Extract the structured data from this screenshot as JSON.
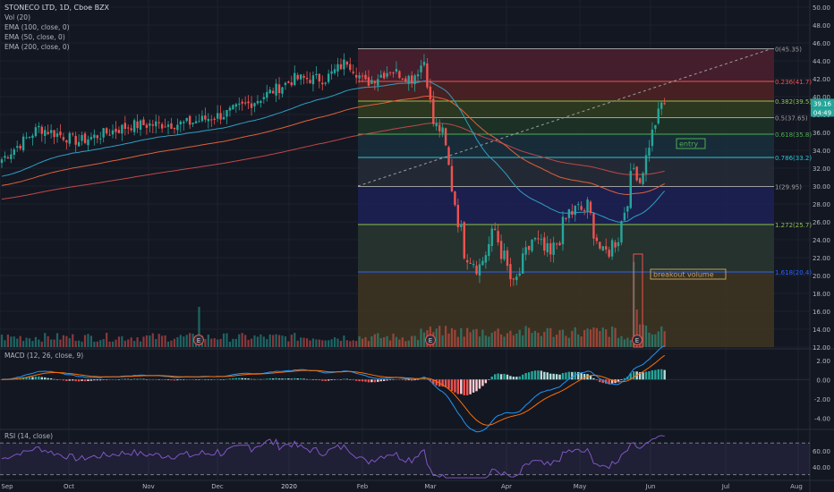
{
  "header": {
    "title": "STONECO LTD, 1D, Cboe BZX",
    "indicators": [
      "Vol (20)",
      "EMA (100, close, 0)",
      "EMA (50, close, 0)",
      "EMA (200, close, 0)"
    ]
  },
  "colors": {
    "background": "#131722",
    "grid": "#1e222d",
    "text": "#b2b5be",
    "up": "#26a69a",
    "down": "#ef5350",
    "ema50": "#2e9fc4",
    "ema100": "#e0603a",
    "ema200": "#c04848",
    "macd": "#2196f3",
    "signal": "#ff6d00",
    "rsi": "#7e57c2",
    "annotation": "#4caf50"
  },
  "chart_data": [
    {
      "type": "candlestick",
      "title": "STONECO LTD, 1D, Cboe BZX",
      "x_months": [
        "Sep",
        "Oct",
        "Nov",
        "Dec",
        "2020",
        "Feb",
        "Mar",
        "Apr",
        "May",
        "Jun",
        "Jul",
        "Aug"
      ],
      "y_ticks": [
        "50.00",
        "48.00",
        "46.00",
        "44.00",
        "42.00",
        "40.00",
        "38.00",
        "36.00",
        "34.00",
        "32.00",
        "30.00",
        "28.00",
        "26.00",
        "24.00",
        "22.00",
        "20.00",
        "18.00",
        "16.00",
        "14.00",
        "12.00"
      ],
      "ylim": [
        12,
        50
      ],
      "price_labels": [
        "39.16",
        "04:49"
      ],
      "close_anchors": [
        {
          "t": 0,
          "v": 33.0
        },
        {
          "t": 12,
          "v": 36.5
        },
        {
          "t": 25,
          "v": 35.0
        },
        {
          "t": 42,
          "v": 36.8
        },
        {
          "t": 60,
          "v": 37.0
        },
        {
          "t": 72,
          "v": 38.0
        },
        {
          "t": 82,
          "v": 39.5
        },
        {
          "t": 95,
          "v": 42.0
        },
        {
          "t": 105,
          "v": 42.0
        },
        {
          "t": 112,
          "v": 44.0
        },
        {
          "t": 118,
          "v": 41.5
        },
        {
          "t": 126,
          "v": 43.0
        },
        {
          "t": 133,
          "v": 42.0
        },
        {
          "t": 137,
          "v": 44.0
        },
        {
          "t": 140,
          "v": 37.0
        },
        {
          "t": 143,
          "v": 36.0
        },
        {
          "t": 146,
          "v": 30.0
        },
        {
          "t": 150,
          "v": 23.0
        },
        {
          "t": 155,
          "v": 21.0
        },
        {
          "t": 160,
          "v": 25.0
        },
        {
          "t": 166,
          "v": 18.5
        },
        {
          "t": 172,
          "v": 24.0
        },
        {
          "t": 178,
          "v": 22.0
        },
        {
          "t": 184,
          "v": 27.0
        },
        {
          "t": 190,
          "v": 27.5
        },
        {
          "t": 195,
          "v": 22.0
        },
        {
          "t": 200,
          "v": 24.5
        },
        {
          "t": 205,
          "v": 32.0
        },
        {
          "t": 207,
          "v": 30.5
        },
        {
          "t": 211,
          "v": 36.0
        },
        {
          "t": 214,
          "v": 39.2
        }
      ],
      "events": [
        {
          "label": "E",
          "date": "Dec"
        },
        {
          "label": "E",
          "date": "Mar"
        },
        {
          "label": "E",
          "date": "Jun"
        }
      ],
      "fibonacci": {
        "levels": [
          {
            "ratio": "0(45.35)",
            "price": 45.35,
            "color": "#9e9e9e",
            "zone": "#4a1f2e"
          },
          {
            "ratio": "0.236(41.7)",
            "price": 41.7,
            "color": "#ef5350",
            "zone": "#4d2124"
          },
          {
            "ratio": "0.382(39.5)",
            "price": 39.5,
            "color": "#8bc34a",
            "zone": "#2f3b1f"
          },
          {
            "ratio": "0.5(37.65)",
            "price": 37.65,
            "color": "#9e9e9e",
            "zone": "#1f3327"
          },
          {
            "ratio": "0.618(35.8)",
            "price": 35.8,
            "color": "#4caf50",
            "zone": "#1a2e3c"
          },
          {
            "ratio": "0.786(33.2)",
            "price": 33.2,
            "color": "#26c6da",
            "zone": "#262b36"
          },
          {
            "ratio": "1(29.95)",
            "price": 29.95,
            "color": "#9e9e9e",
            "zone": "#1d2052"
          },
          {
            "ratio": "1.272(25.7)",
            "price": 25.7,
            "color": "#8bc34a",
            "zone": "#283530"
          },
          {
            "ratio": "1.618(20.4)",
            "price": 20.4,
            "color": "#2962ff",
            "zone": "#3d3421"
          }
        ]
      },
      "annotations": [
        "entry",
        "breakout volume"
      ]
    },
    {
      "type": "macd",
      "title": "MACD (12, 26, close, 9)",
      "y_ticks": [
        "2.00",
        "0.00",
        "-2.00",
        "-4.00"
      ],
      "ylim": [
        -5,
        3
      ]
    },
    {
      "type": "rsi",
      "title": "RSI (14, close)",
      "y_ticks": [
        "60.00",
        "40.00"
      ],
      "ylim": [
        25,
        85
      ],
      "bands": [
        70,
        30
      ]
    }
  ]
}
